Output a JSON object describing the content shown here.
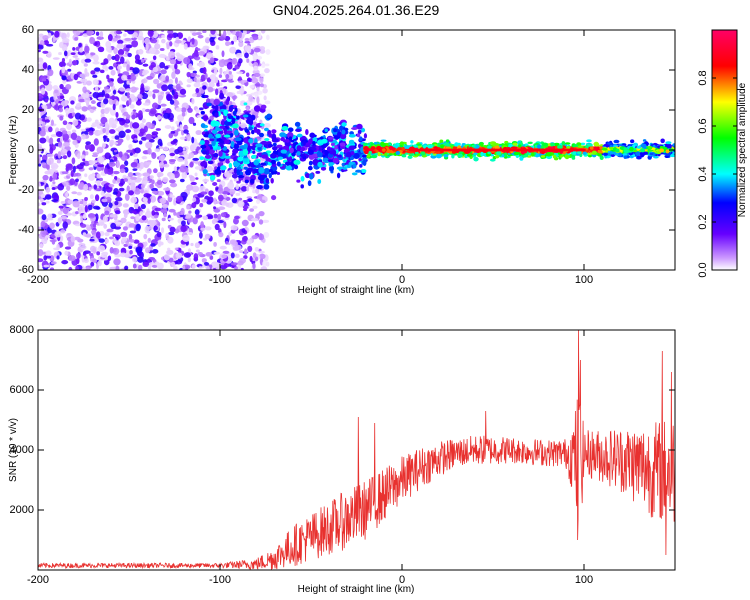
{
  "title": "GN04.2025.264.01.36.E29",
  "chart_data": [
    {
      "type": "heatmap",
      "xlabel": "Height of straight line (km)",
      "ylabel": "Frequency (Hz)",
      "xlim": [
        -200,
        150
      ],
      "ylim": [
        -60,
        60
      ],
      "xticks": [
        "-200",
        "-100",
        "0",
        "100"
      ],
      "yticks": [
        "-60",
        "-40",
        "-20",
        "0",
        "20",
        "40",
        "60"
      ],
      "description_points": {
        "noise_region_x": [
          -200,
          -75
        ],
        "signal_onset_x": -100,
        "strong_signal_x": [
          -20,
          110
        ],
        "signal_freq_hz": 0
      },
      "colorbar": {
        "label": "Normalized spectral amplitude",
        "range": [
          0,
          1
        ],
        "ticks": [
          "0.0",
          "0.2",
          "0.4",
          "0.6",
          "0.8"
        ],
        "colors": [
          "#ffffff",
          "#cc99ff",
          "#6600ff",
          "#0000ff",
          "#00ffff",
          "#00ff00",
          "#ffff00",
          "#ff0000",
          "#ff0066"
        ]
      }
    },
    {
      "type": "line",
      "xlabel": "Height of straight line (km)",
      "ylabel": "SNR (10 * v/v)",
      "xlim": [
        -200,
        150
      ],
      "ylim": [
        0,
        8000
      ],
      "xticks": [
        "-200",
        "-100",
        "0",
        "100"
      ],
      "yticks": [
        "2000",
        "4000",
        "6000",
        "8000"
      ],
      "color": "#e8312f",
      "envelope": {
        "x": [
          -200,
          -100,
          -80,
          -70,
          -60,
          -50,
          -40,
          -30,
          -20,
          -10,
          0,
          10,
          20,
          30,
          40,
          50,
          60,
          70,
          80,
          90,
          95,
          97,
          100,
          110,
          120,
          130,
          140,
          150
        ],
        "mean": [
          150,
          150,
          200,
          400,
          800,
          1100,
          1400,
          1700,
          2000,
          2500,
          3000,
          3400,
          3700,
          3900,
          4000,
          4000,
          4000,
          3950,
          3900,
          3900,
          3800,
          3400,
          3900,
          3800,
          3700,
          3500,
          3300,
          3300
        ],
        "amp": [
          80,
          80,
          200,
          400,
          700,
          800,
          900,
          1000,
          1000,
          900,
          800,
          700,
          600,
          500,
          500,
          500,
          450,
          450,
          450,
          500,
          1500,
          3000,
          800,
          900,
          1100,
          1400,
          1700,
          1900
        ]
      },
      "spikes": [
        {
          "x": -24,
          "y": 5100
        },
        {
          "x": -15,
          "y": 4900
        },
        {
          "x": 46,
          "y": 5300
        },
        {
          "x": 97,
          "y": 8000
        },
        {
          "x": 96.5,
          "y": 1000
        },
        {
          "x": 98,
          "y": 7000
        },
        {
          "x": 143,
          "y": 7300
        },
        {
          "x": 145,
          "y": 500
        },
        {
          "x": 148,
          "y": 6600
        }
      ]
    }
  ]
}
